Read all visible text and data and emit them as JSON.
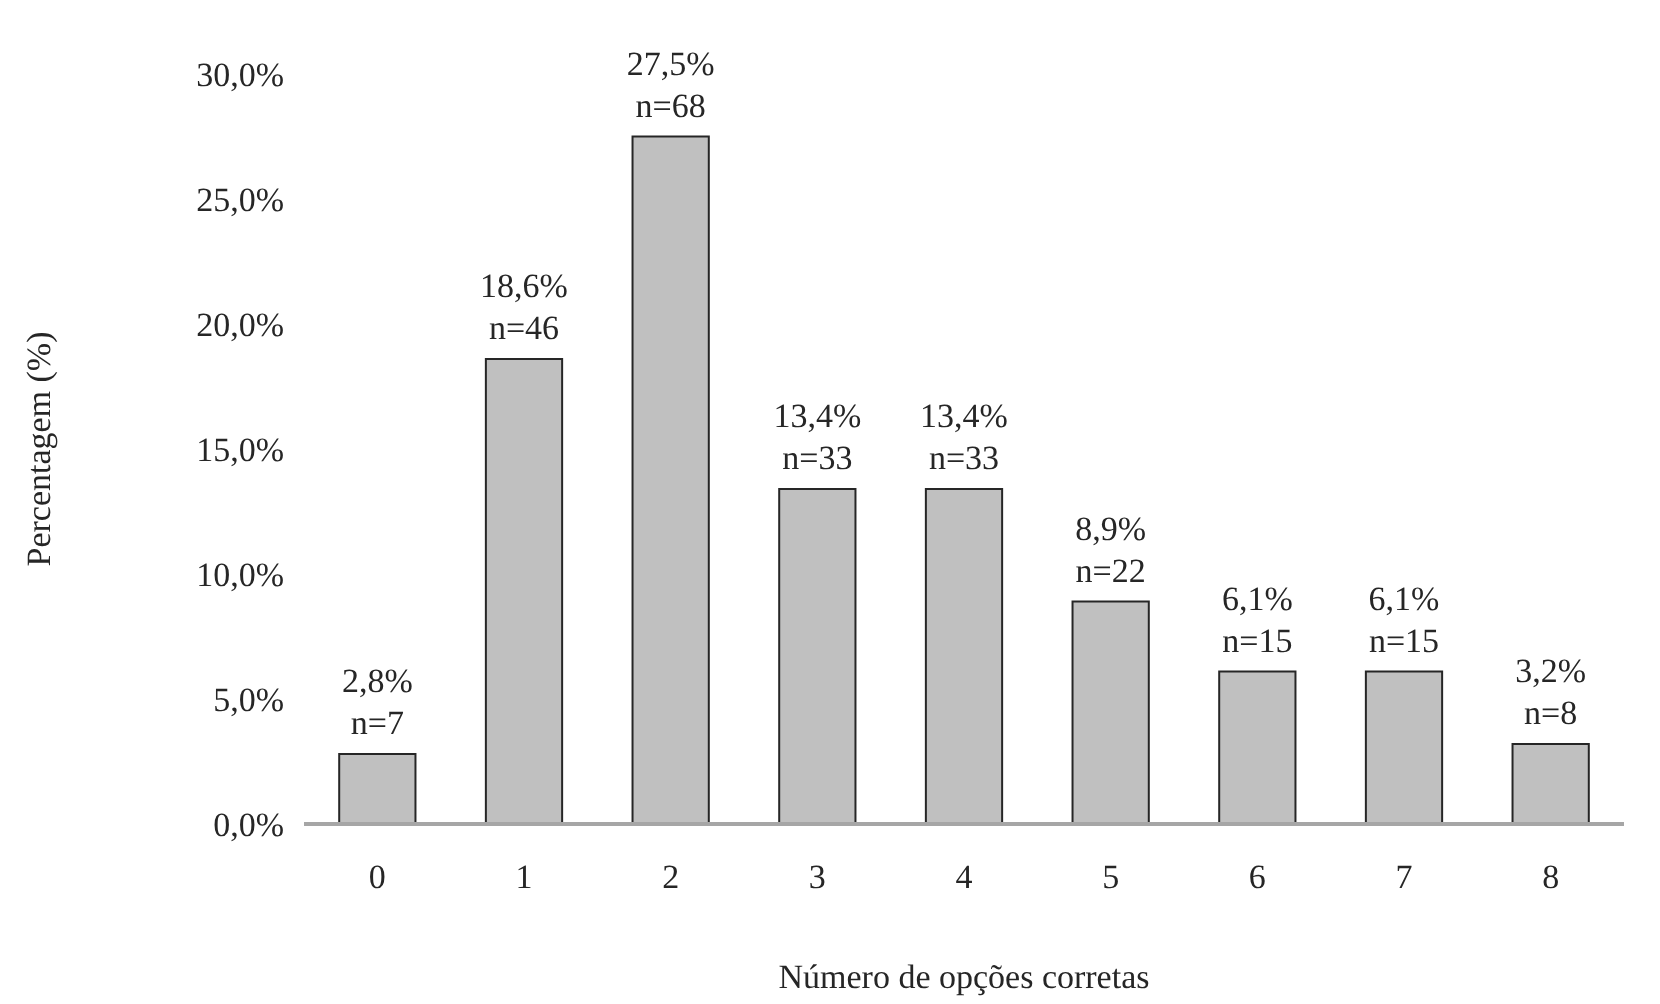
{
  "chart_data": {
    "type": "bar",
    "xlabel": "Número de opções corretas",
    "ylabel": "Percentagem (%)",
    "categories": [
      "0",
      "1",
      "2",
      "3",
      "4",
      "5",
      "6",
      "7",
      "8"
    ],
    "values": [
      2.8,
      18.6,
      27.5,
      13.4,
      13.4,
      8.9,
      6.1,
      6.1,
      3.2
    ],
    "value_labels": [
      "2,8%\nn=7",
      "18,6%\nn=46",
      "27,5%\nn=68",
      "13,4%\nn=33",
      "13,4%\nn=33",
      "8,9%\nn=22",
      "6,1%\nn=15",
      "6,1%\nn=15",
      "3,2%\nn=8"
    ],
    "color": "#c0c0c0",
    "ylim": [
      0,
      30
    ],
    "yticks": [
      {
        "value": 0,
        "label": "0,0%"
      },
      {
        "value": 5,
        "label": "5,0%"
      },
      {
        "value": 10,
        "label": "10,0%"
      },
      {
        "value": 15,
        "label": "15,0%"
      },
      {
        "value": 20,
        "label": "20,0%"
      },
      {
        "value": 25,
        "label": "25,0%"
      },
      {
        "value": 30,
        "label": "30,0%"
      }
    ],
    "grid": false
  }
}
